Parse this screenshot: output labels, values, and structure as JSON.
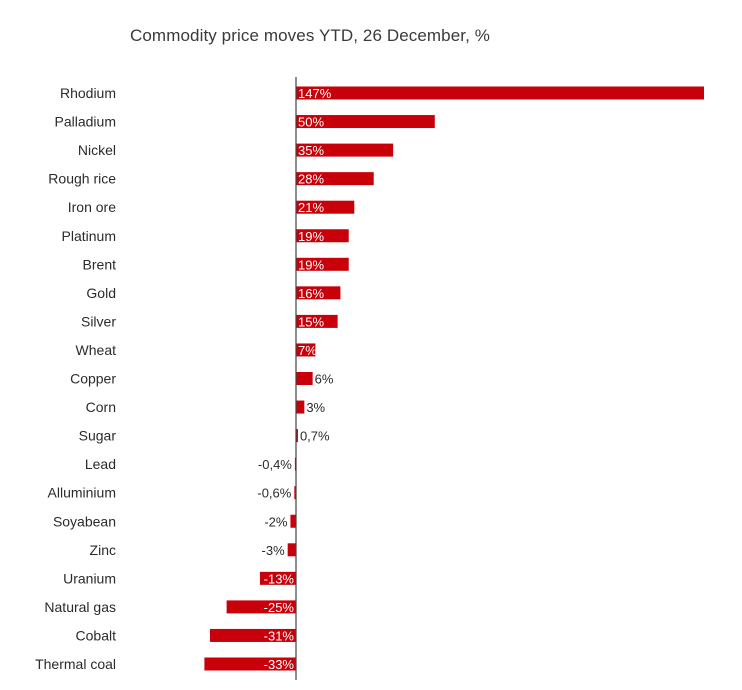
{
  "chart_data": {
    "type": "bar",
    "orientation": "horizontal",
    "title": "Commodity price moves YTD, 26 December, %",
    "xlabel": "",
    "ylabel": "",
    "xlim": [
      -35,
      150
    ],
    "grid": false,
    "legend": "none",
    "bar_color": "#c8000a",
    "categories": [
      "Rhodium",
      "Palladium",
      "Nickel",
      "Rough rice",
      "Iron ore",
      "Platinum",
      "Brent",
      "Gold",
      "Silver",
      "Wheat",
      "Copper",
      "Corn",
      "Sugar",
      "Lead",
      "Alluminium",
      "Soyabean",
      "Zinc",
      "Uranium",
      "Natural gas",
      "Cobalt",
      "Thermal coal"
    ],
    "values": [
      147,
      50,
      35,
      28,
      21,
      19,
      19,
      16,
      15,
      7,
      6,
      3,
      0.7,
      -0.4,
      -0.6,
      -2,
      -3,
      -13,
      -25,
      -31,
      -33
    ],
    "data_labels": [
      "147%",
      "50%",
      "35%",
      "28%",
      "21%",
      "19%",
      "19%",
      "16%",
      "15%",
      "7%",
      "6%",
      "3%",
      "0,7%",
      "-0,4%",
      "-0,6%",
      "-2%",
      "-3%",
      "-13%",
      "-25%",
      "-31%",
      "-33%"
    ]
  }
}
